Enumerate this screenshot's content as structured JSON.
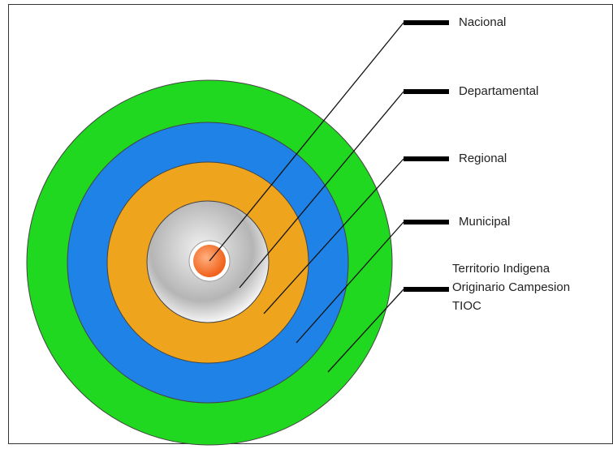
{
  "levels": [
    {
      "label": "Nacional"
    },
    {
      "label": "Departamental"
    },
    {
      "label": "Regional"
    },
    {
      "label": "Municipal"
    },
    {
      "lines": [
        "Territorio Indigena",
        "Originario Campesion",
        "TIOC"
      ]
    }
  ]
}
